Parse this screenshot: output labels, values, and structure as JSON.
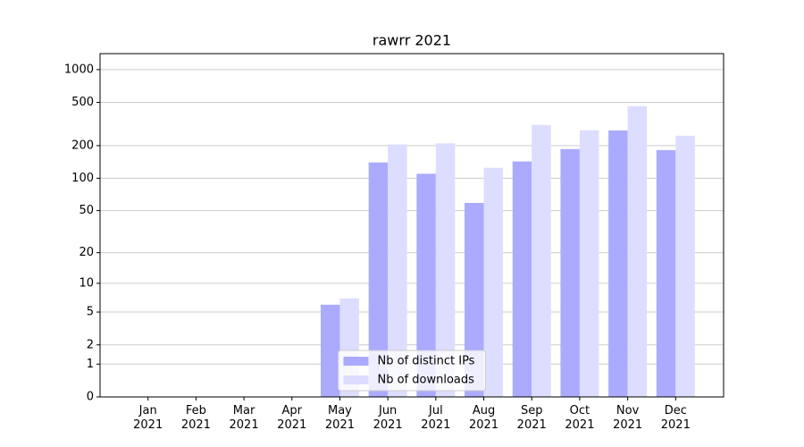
{
  "chart_data": {
    "type": "bar",
    "title": "rawrr 2021",
    "categories": [
      "Jan\n2021",
      "Feb\n2021",
      "Mar\n2021",
      "Apr\n2021",
      "May\n2021",
      "Jun\n2021",
      "Jul\n2021",
      "Aug\n2021",
      "Sep\n2021",
      "Oct\n2021",
      "Nov\n2021",
      "Dec\n2021"
    ],
    "series": [
      {
        "name": "Nb of distinct IPs",
        "color": "#aaaaff",
        "values": [
          0,
          0,
          0,
          0,
          6,
          140,
          110,
          59,
          143,
          186,
          276,
          182
        ]
      },
      {
        "name": "Nb of downloads",
        "color": "#ddddff",
        "values": [
          0,
          0,
          0,
          0,
          7,
          205,
          210,
          125,
          310,
          277,
          461,
          247
        ]
      }
    ],
    "yscale": "log1p",
    "ylim": [
      0,
      1400
    ],
    "yticks": [
      0,
      1,
      2,
      5,
      10,
      20,
      50,
      100,
      200,
      500,
      1000
    ],
    "grid": true,
    "legend": "lower center"
  }
}
